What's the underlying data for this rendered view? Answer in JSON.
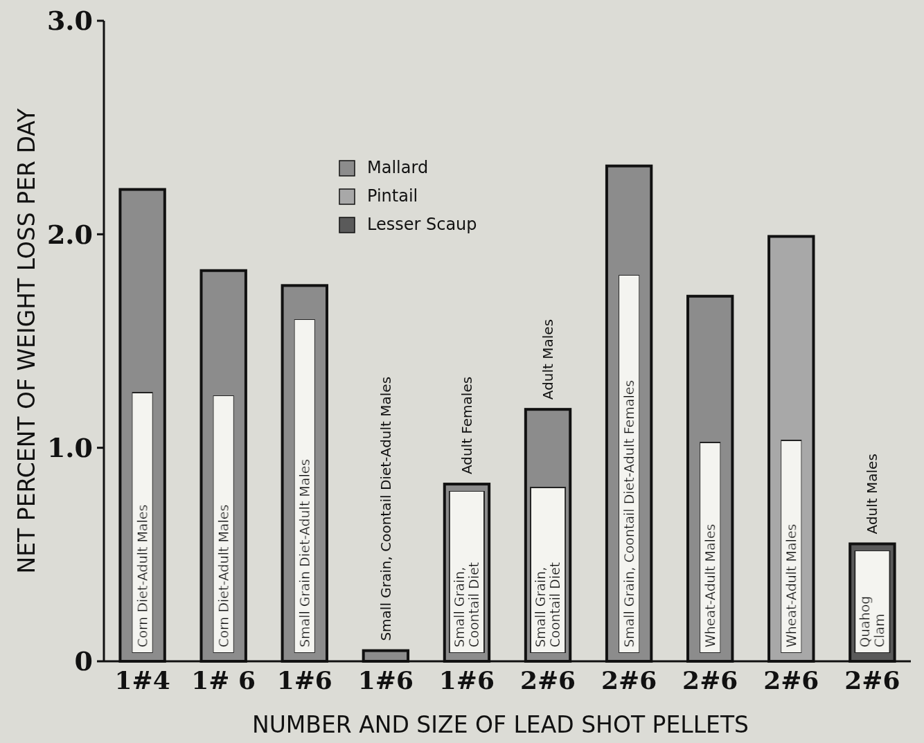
{
  "chart_data": {
    "type": "bar",
    "xlabel": "NUMBER AND SIZE OF LEAD SHOT PELLETS",
    "ylabel": "NET PERCENT OF WEIGHT LOSS PER DAY",
    "categories": [
      "1#4",
      "1# 6",
      "1#6",
      "1#6",
      "1#6",
      "2#6",
      "2#6",
      "2#6",
      "2#6",
      "2#6"
    ],
    "series": [
      {
        "name": "Mallard",
        "color": "#8c8c8c",
        "values": [
          2.21,
          1.83,
          1.76,
          0.05,
          0.83,
          1.18,
          2.32,
          1.71,
          null,
          null
        ]
      },
      {
        "name": "Pintail",
        "color": "#a8a8a8",
        "values": [
          null,
          null,
          null,
          null,
          null,
          null,
          null,
          null,
          1.99,
          null
        ]
      },
      {
        "name": "Lesser Scaup",
        "color": "#5a5a5a",
        "values": [
          null,
          null,
          null,
          null,
          null,
          null,
          null,
          null,
          null,
          0.55
        ]
      }
    ],
    "ylim": [
      0,
      3.0
    ],
    "yticks": [
      {
        "value": 0,
        "label": "0"
      },
      {
        "value": 1,
        "label": "1.0"
      },
      {
        "value": 2,
        "label": "2.0"
      },
      {
        "value": 3,
        "label": "3.0"
      }
    ],
    "legend": "top",
    "annotations": [
      "Corn Diet-Adult Males",
      "Corn Diet-Adult Males",
      "Small Grain Diet-Adult Males",
      "Small Grain, Coontail Diet-Adult Males",
      "Small Grain, Coontail Diet",
      "Adult Females",
      "Small Grain, Coontail Diet",
      "Adult Males",
      "Small Grain, Coontail Diet-Adult Females",
      "Wheat-Adult Males",
      "Wheat-Adult Males",
      "Quahog Clam",
      "Adult Males"
    ]
  }
}
